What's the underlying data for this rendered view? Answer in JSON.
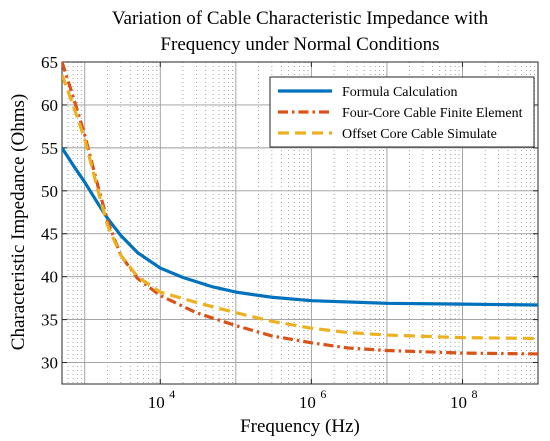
{
  "chart_data": {
    "type": "line",
    "title": [
      "Variation of Cable Characteristic Impedance with",
      "Frequency under Normal Conditions"
    ],
    "xlabel": "Frequency (Hz)",
    "ylabel": "Characteristic Impedance (Ohms)",
    "xscale": "log",
    "xlim": [
      500,
      1000000000
    ],
    "ylim": [
      27.5,
      65
    ],
    "yticks": [
      30,
      35,
      40,
      45,
      50,
      55,
      60,
      65
    ],
    "xticks": [
      {
        "value": 10000,
        "label": "10",
        "exp": "4"
      },
      {
        "value": 1000000,
        "label": "10",
        "exp": "6"
      },
      {
        "value": 100000000,
        "label": "10",
        "exp": "8"
      }
    ],
    "grid": true,
    "legend_position": "top-right",
    "series": [
      {
        "name": "Formula Calculation",
        "color": "#0072BD",
        "dash": "solid",
        "points": [
          [
            500,
            55.0
          ],
          [
            700,
            53.0
          ],
          [
            1000,
            51.0
          ],
          [
            1500,
            48.5
          ],
          [
            2000,
            46.8
          ],
          [
            3000,
            44.8
          ],
          [
            5000,
            42.8
          ],
          [
            10000,
            41.0
          ],
          [
            20000,
            39.9
          ],
          [
            50000,
            38.8
          ],
          [
            100000,
            38.2
          ],
          [
            300000,
            37.6
          ],
          [
            1000000,
            37.2
          ],
          [
            10000000,
            36.9
          ],
          [
            100000000,
            36.8
          ],
          [
            1000000000,
            36.7
          ]
        ]
      },
      {
        "name": "Four-Core Cable Finite Element",
        "color": "#D95319",
        "dash": "dashdot",
        "points": [
          [
            500,
            65.0
          ],
          [
            700,
            61.0
          ],
          [
            1000,
            56.5
          ],
          [
            1500,
            50.5
          ],
          [
            2000,
            46.5
          ],
          [
            3000,
            42.5
          ],
          [
            5000,
            39.8
          ],
          [
            10000,
            37.8
          ],
          [
            30000,
            35.8
          ],
          [
            100000,
            34.3
          ],
          [
            300000,
            33.1
          ],
          [
            1000000,
            32.3
          ],
          [
            3000000,
            31.7
          ],
          [
            10000000,
            31.4
          ],
          [
            100000000,
            31.1
          ],
          [
            1000000000,
            31.0
          ]
        ]
      },
      {
        "name": "Offset Core Cable Simulate",
        "color": "#EDB120",
        "dash": "dashed",
        "points": [
          [
            500,
            63.5
          ],
          [
            700,
            60.0
          ],
          [
            1000,
            56.0
          ],
          [
            1500,
            50.0
          ],
          [
            2000,
            46.0
          ],
          [
            3000,
            42.5
          ],
          [
            5000,
            40.0
          ],
          [
            10000,
            38.2
          ],
          [
            30000,
            37.0
          ],
          [
            100000,
            35.8
          ],
          [
            300000,
            34.8
          ],
          [
            1000000,
            34.0
          ],
          [
            3000000,
            33.5
          ],
          [
            10000000,
            33.2
          ],
          [
            100000000,
            32.9
          ],
          [
            1000000000,
            32.8
          ]
        ]
      }
    ]
  }
}
